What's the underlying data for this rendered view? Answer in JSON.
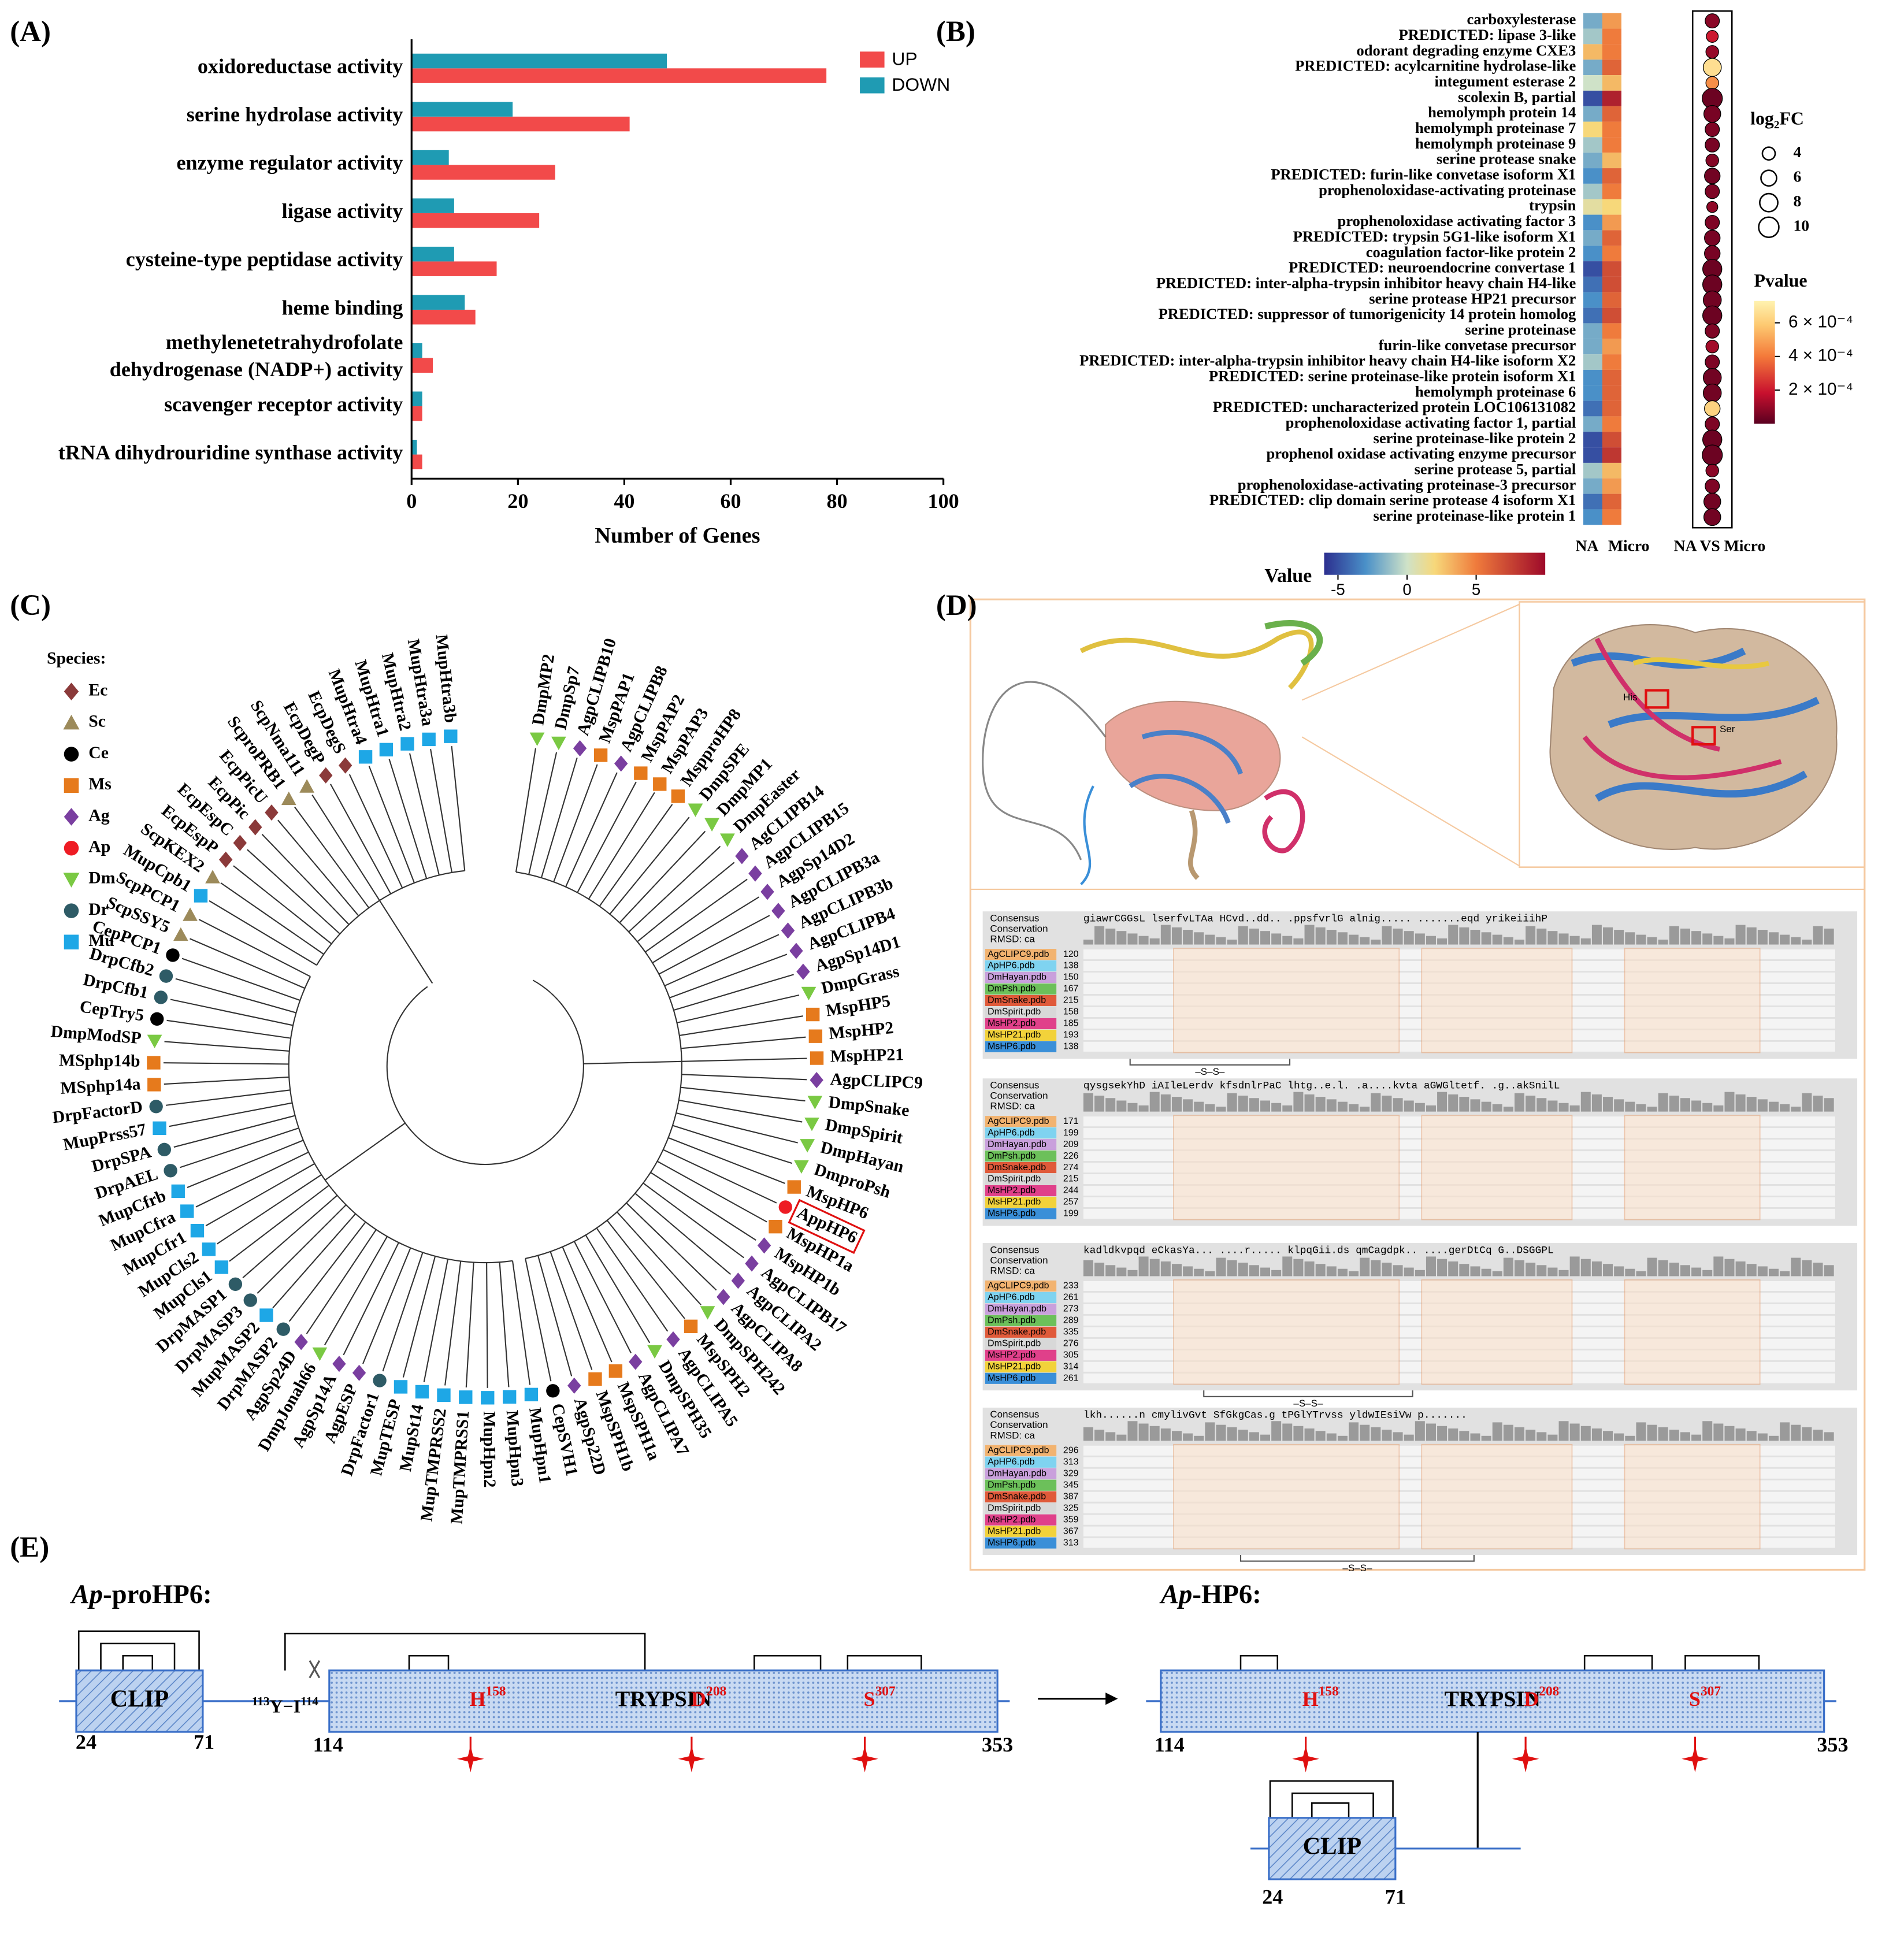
{
  "panel_labels": [
    "(A)",
    "(B)",
    "(C)",
    "(D)",
    "(E)"
  ],
  "chart_data": [
    {
      "type": "bar",
      "orientation": "horizontal",
      "categories": [
        "oxidoreductase activity",
        "serine hydrolase activity",
        "enzyme regulator activity",
        "ligase activity",
        "cysteine-type peptidase activity",
        "heme binding",
        "methylenetetrahydrofolate\ndehydrogenase (NADP+) activity",
        "scavenger receptor activity",
        "tRNA dihydrouridine synthase activity"
      ],
      "series": [
        {
          "name": "UP",
          "color": "#f24a4a",
          "values": [
            78,
            41,
            27,
            24,
            16,
            12,
            4,
            2,
            2
          ]
        },
        {
          "name": "DOWN",
          "color": "#1f9bb3",
          "values": [
            48,
            19,
            7,
            8,
            8,
            10,
            2,
            2,
            1
          ]
        }
      ],
      "xlabel": "Number of Genes",
      "xlim": [
        0,
        100
      ],
      "xticks": [
        0,
        20,
        40,
        60,
        80,
        100
      ]
    },
    {
      "type": "heatmap",
      "rows": [
        "carboxylesterase",
        "PREDICTED: lipase 3-like",
        "odorant degrading enzyme CXE3",
        "PREDICTED: acylcarnitine hydrolase-like",
        "integument esterase 2",
        "scolexin B, partial",
        "hemolymph protein 14",
        "hemolymph proteinase 7",
        "hemolymph proteinase 9",
        "serine protease snake",
        "PREDICTED: furin-like convetase isoform X1",
        "prophenoloxidase-activating proteinase",
        "trypsin",
        "prophenoloxidase activating factor 3",
        "PREDICTED: trypsin 5G1-like isoform X1",
        "coagulation factor-like protein 2",
        "PREDICTED: neuroendocrine convertase 1",
        "PREDICTED: inter-alpha-trypsin inhibitor heavy chain H4-like",
        "serine protease HP21 precursor",
        "PREDICTED: suppressor of tumorigenicity 14 protein homolog",
        "serine proteinase",
        "furin-like convetase precursor",
        "PREDICTED: inter-alpha-trypsin inhibitor heavy chain H4-like isoform X2",
        "PREDICTED: serine proteinase-like protein isoform X1",
        "hemolymph proteinase 6",
        "PREDICTED: uncharacterized protein LOC106131082",
        "prophenoloxidase activating factor 1, partial",
        "serine proteinase-like protein 2",
        "prophenol oxidase activating enzyme precursor",
        "serine protease 5, partial",
        "prophenoloxidase-activating proteinase-3 precursor",
        "PREDICTED: clip domain serine protease 4 isoform X1",
        "serine proteinase-like protein 1"
      ],
      "columns": [
        "NA",
        "Micro"
      ],
      "values": [
        [
          -2,
          4
        ],
        [
          -1,
          5
        ],
        [
          3,
          5
        ],
        [
          -2,
          6
        ],
        [
          0,
          3
        ],
        [
          -5,
          9
        ],
        [
          -2,
          6
        ],
        [
          2,
          5
        ],
        [
          -1,
          5
        ],
        [
          -2,
          3
        ],
        [
          -3,
          6
        ],
        [
          -1,
          5
        ],
        [
          1,
          2
        ],
        [
          -3,
          4
        ],
        [
          -2,
          6
        ],
        [
          -3,
          5
        ],
        [
          -5,
          7
        ],
        [
          -4,
          7
        ],
        [
          -3,
          6
        ],
        [
          -4,
          7
        ],
        [
          -2,
          5
        ],
        [
          -2,
          4
        ],
        [
          -1,
          5
        ],
        [
          -3,
          6
        ],
        [
          -3,
          6
        ],
        [
          -4,
          6
        ],
        [
          -2,
          5
        ],
        [
          -5,
          7
        ],
        [
          -5,
          8
        ],
        [
          -1,
          3
        ],
        [
          -2,
          4
        ],
        [
          -4,
          6
        ],
        [
          -3,
          5
        ]
      ],
      "colorbar_title": "Value",
      "vlim": [
        -6,
        10
      ],
      "vticks": [
        -5,
        0,
        5
      ],
      "dot_column": "NA VS Micro",
      "log2fc": [
        5,
        3.5,
        4,
        8,
        4,
        10,
        7,
        5,
        5,
        4,
        6,
        5,
        3,
        5,
        6,
        6,
        9,
        9,
        8,
        9,
        5,
        4,
        5,
        8,
        8,
        6,
        5,
        9,
        10,
        4,
        5,
        7,
        7
      ],
      "pvalue": [
        8e-05,
        0.0002,
        0.0001,
        0.00066,
        0.00045,
        3e-05,
        5e-05,
        6e-05,
        5e-05,
        7e-05,
        4e-05,
        6e-05,
        9e-05,
        6e-05,
        5e-05,
        5e-05,
        3e-05,
        3e-05,
        4e-05,
        3e-05,
        6e-05,
        0.00012,
        6e-05,
        4e-05,
        4e-05,
        0.00062,
        6e-05,
        3e-05,
        3e-05,
        8e-05,
        6e-05,
        4e-05,
        4e-05
      ],
      "size_title": "log₂FC",
      "size_ticks": [
        4,
        6,
        8,
        10
      ],
      "color_title": "Pvalue",
      "plim": [
        0,
        0.00073
      ],
      "pticks": [
        {
          "value": 0.0006,
          "label": "6 × 10⁻⁴"
        },
        {
          "value": 0.0004,
          "label": "4 × 10⁻⁴"
        },
        {
          "value": 0.0002,
          "label": "2 × 10⁻⁴"
        }
      ]
    }
  ],
  "tree": {
    "legend_title": "Species:",
    "species": [
      {
        "code": "Ec",
        "color": "#8b3a3a",
        "shape": "diamond"
      },
      {
        "code": "Sc",
        "color": "#9c8a5a",
        "shape": "triangle"
      },
      {
        "code": "Ce",
        "color": "#000000",
        "shape": "circle"
      },
      {
        "code": "Ms",
        "color": "#e67a1c",
        "shape": "square"
      },
      {
        "code": "Ag",
        "color": "#7a3fa0",
        "shape": "diamond"
      },
      {
        "code": "Ap",
        "color": "#ee1c24",
        "shape": "circle"
      },
      {
        "code": "Dm",
        "color": "#7ac943",
        "shape": "triangle-down"
      },
      {
        "code": "Dr",
        "color": "#2e5b66",
        "shape": "circle"
      },
      {
        "code": "Mu",
        "color": "#1ea7e6",
        "shape": "square"
      }
    ],
    "tips": [
      {
        "label": "DmpMP2",
        "species": "Dm"
      },
      {
        "label": "DmpSp7",
        "species": "Dm"
      },
      {
        "label": "AgpCLIPB10",
        "species": "Ag"
      },
      {
        "label": "MspPAP1",
        "species": "Ms"
      },
      {
        "label": "AgpCLIPB8",
        "species": "Ag"
      },
      {
        "label": "MspPAP2",
        "species": "Ms"
      },
      {
        "label": "MspPAP3",
        "species": "Ms"
      },
      {
        "label": "MspproHP8",
        "species": "Ms"
      },
      {
        "label": "DmpSPE",
        "species": "Dm"
      },
      {
        "label": "DmpMP1",
        "species": "Dm"
      },
      {
        "label": "DmpEaster",
        "species": "Dm"
      },
      {
        "label": "AgCLIPB14",
        "species": "Ag"
      },
      {
        "label": "AgpCLIPB15",
        "species": "Ag"
      },
      {
        "label": "AgpSp14D2",
        "species": "Ag"
      },
      {
        "label": "AgpCLIPB3a",
        "species": "Ag"
      },
      {
        "label": "AgpCLIPB3b",
        "species": "Ag"
      },
      {
        "label": "AgpCLIPB4",
        "species": "Ag"
      },
      {
        "label": "AgpSp14D1",
        "species": "Ag"
      },
      {
        "label": "DmpGrass",
        "species": "Dm"
      },
      {
        "label": "MspHP5",
        "species": "Ms"
      },
      {
        "label": "MspHP2",
        "species": "Ms"
      },
      {
        "label": "MspHP21",
        "species": "Ms"
      },
      {
        "label": "AgpCLIPC9",
        "species": "Ag"
      },
      {
        "label": "DmpSnake",
        "species": "Dm"
      },
      {
        "label": "DmpSpirit",
        "species": "Dm"
      },
      {
        "label": "DmpHayan",
        "species": "Dm"
      },
      {
        "label": "DmproPsh",
        "species": "Dm"
      },
      {
        "label": "MspHP6",
        "species": "Ms"
      },
      {
        "label": "AppHP6",
        "species": "Ap",
        "boxed": true
      },
      {
        "label": "MspHP1a",
        "species": "Ms"
      },
      {
        "label": "MspHP1b",
        "species": "Ag"
      },
      {
        "label": "AgpCLIPB17",
        "species": "Ag"
      },
      {
        "label": "AgpCLIPA2",
        "species": "Ag"
      },
      {
        "label": "AgpCLIPA8",
        "species": "Ag"
      },
      {
        "label": "DmpSPH242",
        "species": "Dm"
      },
      {
        "label": "MspSPH2",
        "species": "Ms"
      },
      {
        "label": "AgpCLIPA5",
        "species": "Ag"
      },
      {
        "label": "DmpSPH35",
        "species": "Dm"
      },
      {
        "label": "AgpCLIPA7",
        "species": "Ag"
      },
      {
        "label": "MspSPH1a",
        "species": "Ms"
      },
      {
        "label": "MspSPH1b",
        "species": "Ms"
      },
      {
        "label": "AgpSp22D",
        "species": "Ag"
      },
      {
        "label": "CepSVH1",
        "species": "Ce"
      },
      {
        "label": "MupHpn1",
        "species": "Mu"
      },
      {
        "label": "MupHpn3",
        "species": "Mu"
      },
      {
        "label": "MupHpn2",
        "species": "Mu"
      },
      {
        "label": "MupTMPRSS1",
        "species": "Mu"
      },
      {
        "label": "MupTMPRSS2",
        "species": "Mu"
      },
      {
        "label": "MupSt14",
        "species": "Mu"
      },
      {
        "label": "MupTESP",
        "species": "Mu"
      },
      {
        "label": "DrpFactor1",
        "species": "Dr"
      },
      {
        "label": "AgpESP",
        "species": "Ag"
      },
      {
        "label": "AgpSp14A",
        "species": "Ag"
      },
      {
        "label": "DmpJonah66",
        "species": "Dm"
      },
      {
        "label": "AgpSp24D",
        "species": "Ag"
      },
      {
        "label": "DrpMASP2",
        "species": "Dr"
      },
      {
        "label": "MupMASP2",
        "species": "Mu"
      },
      {
        "label": "DrpMASP3",
        "species": "Dr"
      },
      {
        "label": "DrpMASP1",
        "species": "Dr"
      },
      {
        "label": "MupCls1",
        "species": "Mu"
      },
      {
        "label": "MupCls2",
        "species": "Mu"
      },
      {
        "label": "MupCfr1",
        "species": "Mu"
      },
      {
        "label": "MupCfra",
        "species": "Mu"
      },
      {
        "label": "MupCfrb",
        "species": "Mu"
      },
      {
        "label": "DrpAEL",
        "species": "Dr"
      },
      {
        "label": "DrpSPA",
        "species": "Dr"
      },
      {
        "label": "MupPrss57",
        "species": "Mu"
      },
      {
        "label": "DrpFactorD",
        "species": "Dr"
      },
      {
        "label": "MSphp14a",
        "species": "Ms"
      },
      {
        "label": "MSphp14b",
        "species": "Ms"
      },
      {
        "label": "DmpModSP",
        "species": "Dm"
      },
      {
        "label": "CepTry5",
        "species": "Ce"
      },
      {
        "label": "DrpCfb1",
        "species": "Dr"
      },
      {
        "label": "DrpCfb2",
        "species": "Dr"
      },
      {
        "label": "CepPCP1",
        "species": "Ce"
      },
      {
        "label": "ScpSSY5",
        "species": "Sc"
      },
      {
        "label": "ScpPCP1",
        "species": "Sc"
      },
      {
        "label": "MupCpb1",
        "species": "Mu"
      },
      {
        "label": "ScpKEX2",
        "species": "Sc"
      },
      {
        "label": "EcpEspP",
        "species": "Ec"
      },
      {
        "label": "EcpEspC",
        "species": "Ec"
      },
      {
        "label": "EcpPic",
        "species": "Ec"
      },
      {
        "label": "EcpPicU",
        "species": "Ec"
      },
      {
        "label": "ScproPRB1",
        "species": "Sc"
      },
      {
        "label": "ScpNma111",
        "species": "Sc"
      },
      {
        "label": "EcpDegP",
        "species": "Ec"
      },
      {
        "label": "EcpDegS",
        "species": "Ec"
      },
      {
        "label": "MupHtra4",
        "species": "Mu"
      },
      {
        "label": "MupHtra1",
        "species": "Mu"
      },
      {
        "label": "MupHtra2",
        "species": "Mu"
      },
      {
        "label": "MupHtra3a",
        "species": "Mu"
      },
      {
        "label": "MupHtra3b",
        "species": "Mu"
      }
    ]
  },
  "alignment": {
    "header": [
      "Consensus",
      "Conservation",
      "RMSD: ca"
    ],
    "names": [
      "AgCLIPC9.pdb",
      "ApHP6.pdb",
      "DmHayan.pdb",
      "DmPsh.pdb",
      "DmSnake.pdb",
      "DmSpirit.pdb",
      "MsHP2.pdb",
      "MsHP21.pdb",
      "MsHP6.pdb"
    ],
    "name_colors": [
      "#f2b370",
      "#7fd3f0",
      "#c9a0dc",
      "#6cc05a",
      "#e05a3a",
      "#d8d8d8",
      "#e0408a",
      "#f2d23a",
      "#3a8fd8"
    ],
    "blocks": [
      {
        "consensus": "giawrCGGsL lserfvLTAa HCvd..dd.. .ppsfvrlG alnig..... .......eqd yrikeiiihP",
        "starts": [
          120,
          138,
          150,
          167,
          215,
          158,
          185,
          193,
          138
        ]
      },
      {
        "consensus": "qysgsekYhD iAIleLerdv kfsdnlrPaC lhtg..e.l. .a....kvta aGWGltetf. .g..akSnilL",
        "starts": [
          171,
          199,
          209,
          226,
          274,
          215,
          244,
          257,
          199
        ]
      },
      {
        "consensus": "kadldkvpqd eCkasYa... ....r..... klpqGii.ds qmCagdpk.. ....gerDtCq G..DSGGPL",
        "starts": [
          233,
          261,
          273,
          289,
          335,
          276,
          305,
          314,
          261
        ]
      },
      {
        "consensus": "lkh......n cmylivGvt SfGkgCas.g tPGlYTrvss yldwIEsiVw p.......",
        "starts": [
          296,
          313,
          329,
          345,
          387,
          325,
          359,
          367,
          313
        ]
      }
    ],
    "ss_label": "–S–S–",
    "sites": [
      "His",
      "Ser"
    ]
  },
  "domains": {
    "pro_title": {
      "italic": "Ap",
      "rest": "-proHP6:"
    },
    "mature_title": {
      "italic": "Ap",
      "rest": "-HP6:"
    },
    "clip": "CLIP",
    "trypsin": "TRYPSIN",
    "cleavage": {
      "left": "113",
      "text": "Y−I",
      "right": "114"
    },
    "sites": [
      {
        "letter": "H",
        "pos": "158"
      },
      {
        "letter": "D",
        "pos": "208"
      },
      {
        "letter": "S",
        "pos": "307"
      }
    ],
    "clip_bounds": [
      24,
      71
    ],
    "trypsin_bounds": [
      114,
      353
    ]
  }
}
